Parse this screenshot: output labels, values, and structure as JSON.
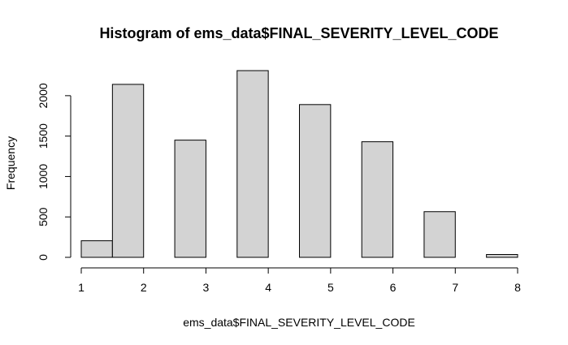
{
  "chart_data": {
    "type": "bar",
    "title": "Histogram of ems_data$FINAL_SEVERITY_LEVEL_CODE",
    "xlabel": "ems_data$FINAL_SEVERITY_LEVEL_CODE",
    "ylabel": "Frequency",
    "bins": [
      {
        "from": 1.0,
        "to": 1.5,
        "value": 205
      },
      {
        "from": 1.5,
        "to": 2.0,
        "value": 2140
      },
      {
        "from": 2.0,
        "to": 2.5,
        "value": 0
      },
      {
        "from": 2.5,
        "to": 3.0,
        "value": 1450
      },
      {
        "from": 3.0,
        "to": 3.5,
        "value": 0
      },
      {
        "from": 3.5,
        "to": 4.0,
        "value": 2310
      },
      {
        "from": 4.0,
        "to": 4.5,
        "value": 0
      },
      {
        "from": 4.5,
        "to": 5.0,
        "value": 1890
      },
      {
        "from": 5.0,
        "to": 5.5,
        "value": 0
      },
      {
        "from": 5.5,
        "to": 6.0,
        "value": 1430
      },
      {
        "from": 6.0,
        "to": 6.5,
        "value": 0
      },
      {
        "from": 6.5,
        "to": 7.0,
        "value": 565
      },
      {
        "from": 7.0,
        "to": 7.5,
        "value": 0
      },
      {
        "from": 7.5,
        "to": 8.0,
        "value": 35
      }
    ],
    "xticks": [
      1,
      2,
      3,
      4,
      5,
      6,
      7,
      8
    ],
    "yticks": [
      0,
      500,
      1000,
      1500,
      2000
    ],
    "xlim": [
      1,
      8
    ],
    "ylim": [
      0,
      2310
    ],
    "bar_color": "#d3d3d3",
    "bar_edge_color": "#000000",
    "grid": false
  }
}
